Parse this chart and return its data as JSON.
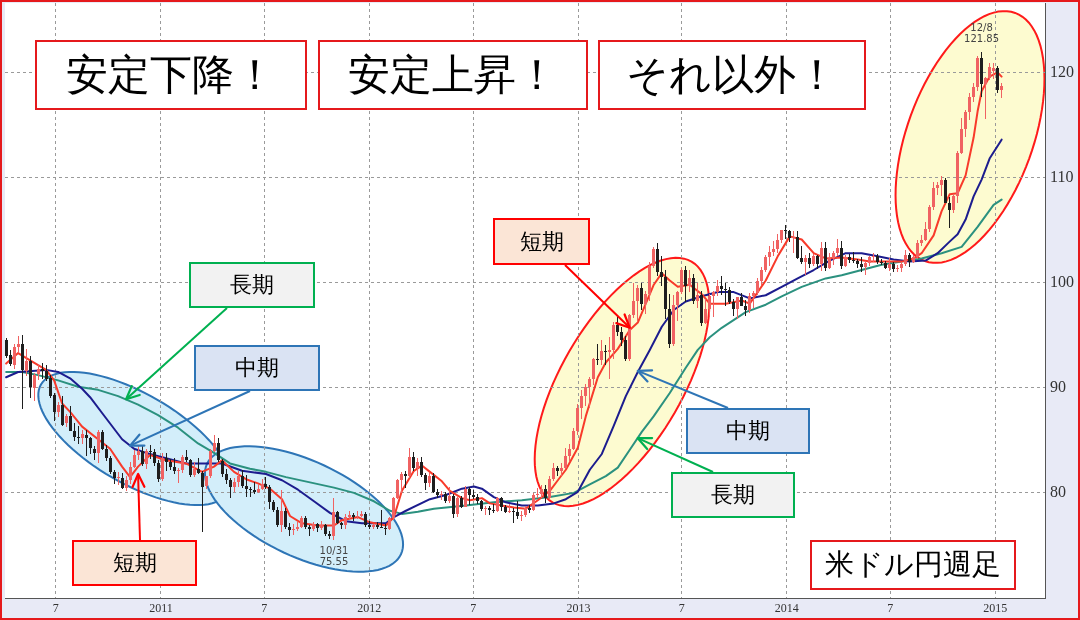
{
  "chart_data": {
    "type": "candlestick",
    "title": "米ドル円週足",
    "annotations": [
      "安定下降！",
      "安定上昇！",
      "それ以外！",
      {
        "text": "長期",
        "x": "2010-11-01",
        "y": 88.9
      },
      {
        "text": "中期",
        "x": "2010-11-08",
        "y": 84.5
      },
      {
        "text": "短期",
        "x": "2010-11-22",
        "y": 81.8
      },
      {
        "text": "短期",
        "x": "2013-04-01",
        "y": 95.7
      },
      {
        "text": "中期",
        "x": "2013-04-15",
        "y": 91.6
      },
      {
        "text": "長期",
        "x": "2013-04-15",
        "y": 85.2
      },
      {
        "text": "12/8\n121.85",
        "x": "2014-12-08",
        "y": 121.85
      },
      {
        "text": "10/31\n75.55",
        "x": "2011-10-31",
        "y": 75.55
      }
    ],
    "xlim": [
      "2010-04-03",
      "2015-03-29"
    ],
    "xticks": [
      {
        "value": "2010-07-01",
        "label": "7"
      },
      {
        "value": "2011-01-01",
        "label": "2011"
      },
      {
        "value": "2011-07-01",
        "label": "7"
      },
      {
        "value": "2012-01-01",
        "label": "2012"
      },
      {
        "value": "2012-07-01",
        "label": "7"
      },
      {
        "value": "2013-01-01",
        "label": "2013"
      },
      {
        "value": "2013-07-01",
        "label": "7"
      },
      {
        "value": "2014-01-01",
        "label": "2014"
      },
      {
        "value": "2014-07-01",
        "label": "7"
      },
      {
        "value": "2015-01-01",
        "label": "2015"
      }
    ],
    "ylim": [
      70,
      126.6
    ],
    "yticks": [
      80,
      90,
      100,
      110,
      120
    ],
    "grid": true,
    "x": [
      "2010-04-05",
      "2010-04-12",
      "2010-04-19",
      "2010-04-26",
      "2010-05-03",
      "2010-05-10",
      "2010-05-17",
      "2010-05-24",
      "2010-05-31",
      "2010-06-07",
      "2010-06-14",
      "2010-06-21",
      "2010-06-28",
      "2010-07-05",
      "2010-07-12",
      "2010-07-19",
      "2010-07-26",
      "2010-08-02",
      "2010-08-09",
      "2010-08-16",
      "2010-08-23",
      "2010-08-30",
      "2010-09-06",
      "2010-09-13",
      "2010-09-20",
      "2010-09-27",
      "2010-10-04",
      "2010-10-11",
      "2010-10-18",
      "2010-10-25",
      "2010-11-01",
      "2010-11-08",
      "2010-11-15",
      "2010-11-22",
      "2010-11-29",
      "2010-12-06",
      "2010-12-13",
      "2010-12-20",
      "2010-12-27",
      "2011-01-03",
      "2011-01-10",
      "2011-01-17",
      "2011-01-24",
      "2011-01-31",
      "2011-02-07",
      "2011-02-14",
      "2011-02-21",
      "2011-02-28",
      "2011-03-07",
      "2011-03-14",
      "2011-03-21",
      "2011-03-28",
      "2011-04-04",
      "2011-04-11",
      "2011-04-18",
      "2011-04-25",
      "2011-05-02",
      "2011-05-09",
      "2011-05-16",
      "2011-05-23",
      "2011-05-30",
      "2011-06-06",
      "2011-06-13",
      "2011-06-20",
      "2011-06-27",
      "2011-07-04",
      "2011-07-11",
      "2011-07-18",
      "2011-07-25",
      "2011-08-01",
      "2011-08-08",
      "2011-08-15",
      "2011-08-22",
      "2011-08-29",
      "2011-09-05",
      "2011-09-12",
      "2011-09-19",
      "2011-09-26",
      "2011-10-03",
      "2011-10-10",
      "2011-10-17",
      "2011-10-24",
      "2011-10-31",
      "2011-11-07",
      "2011-11-14",
      "2011-11-21",
      "2011-11-28",
      "2011-12-05",
      "2011-12-12",
      "2011-12-19",
      "2011-12-26",
      "2012-01-02",
      "2012-01-09",
      "2012-01-16",
      "2012-01-23",
      "2012-01-30",
      "2012-02-06",
      "2012-02-13",
      "2012-02-20",
      "2012-02-27",
      "2012-03-05",
      "2012-03-12",
      "2012-03-19",
      "2012-03-26",
      "2012-04-02",
      "2012-04-09",
      "2012-04-16",
      "2012-04-23",
      "2012-04-30",
      "2012-05-07",
      "2012-05-14",
      "2012-05-21",
      "2012-05-28",
      "2012-06-04",
      "2012-06-11",
      "2012-06-18",
      "2012-06-25",
      "2012-07-02",
      "2012-07-09",
      "2012-07-16",
      "2012-07-23",
      "2012-07-30",
      "2012-08-06",
      "2012-08-13",
      "2012-08-20",
      "2012-08-27",
      "2012-09-03",
      "2012-09-10",
      "2012-09-17",
      "2012-09-24",
      "2012-10-01",
      "2012-10-08",
      "2012-10-15",
      "2012-10-22",
      "2012-10-29",
      "2012-11-05",
      "2012-11-12",
      "2012-11-19",
      "2012-11-26",
      "2012-12-03",
      "2012-12-10",
      "2012-12-17",
      "2012-12-24",
      "2012-12-31",
      "2013-01-07",
      "2013-01-14",
      "2013-01-21",
      "2013-01-28",
      "2013-02-04",
      "2013-02-11",
      "2013-02-18",
      "2013-02-25",
      "2013-03-04",
      "2013-03-11",
      "2013-03-18",
      "2013-03-25",
      "2013-04-01",
      "2013-04-08",
      "2013-04-15",
      "2013-04-22",
      "2013-04-29",
      "2013-05-06",
      "2013-05-13",
      "2013-05-20",
      "2013-05-27",
      "2013-06-03",
      "2013-06-10",
      "2013-06-17",
      "2013-06-24",
      "2013-07-01",
      "2013-07-08",
      "2013-07-15",
      "2013-07-22",
      "2013-07-29",
      "2013-08-05",
      "2013-08-12",
      "2013-08-19",
      "2013-08-26",
      "2013-09-02",
      "2013-09-09",
      "2013-09-16",
      "2013-09-23",
      "2013-09-30",
      "2013-10-07",
      "2013-10-14",
      "2013-10-21",
      "2013-10-28",
      "2013-11-04",
      "2013-11-11",
      "2013-11-18",
      "2013-11-25",
      "2013-12-02",
      "2013-12-09",
      "2013-12-16",
      "2013-12-23",
      "2013-12-30",
      "2014-01-06",
      "2014-01-13",
      "2014-01-20",
      "2014-01-27",
      "2014-02-03",
      "2014-02-10",
      "2014-02-17",
      "2014-02-24",
      "2014-03-03",
      "2014-03-10",
      "2014-03-17",
      "2014-03-24",
      "2014-03-31",
      "2014-04-07",
      "2014-04-14",
      "2014-04-21",
      "2014-04-28",
      "2014-05-05",
      "2014-05-12",
      "2014-05-19",
      "2014-05-26",
      "2014-06-02",
      "2014-06-09",
      "2014-06-16",
      "2014-06-23",
      "2014-06-30",
      "2014-07-07",
      "2014-07-14",
      "2014-07-21",
      "2014-07-28",
      "2014-08-04",
      "2014-08-11",
      "2014-08-18",
      "2014-08-25",
      "2014-09-01",
      "2014-09-08",
      "2014-09-15",
      "2014-09-22",
      "2014-09-29",
      "2014-10-06",
      "2014-10-13",
      "2014-10-20",
      "2014-10-27",
      "2014-11-03",
      "2014-11-10",
      "2014-11-17",
      "2014-11-24",
      "2014-12-01",
      "2014-12-08",
      "2014-12-15",
      "2014-12-22",
      "2014-12-29",
      "2015-01-05",
      "2015-01-12"
    ],
    "ohlc": [
      [
        94.5,
        94.7,
        92.9,
        93.0
      ],
      [
        93.1,
        93.5,
        92.1,
        92.3
      ],
      [
        92.2,
        94.1,
        91.8,
        93.9
      ],
      [
        93.9,
        94.9,
        93.4,
        94.2
      ],
      [
        94.2,
        95.0,
        88.0,
        91.7
      ],
      [
        91.6,
        93.6,
        91.2,
        92.5
      ],
      [
        92.5,
        93.0,
        89.1,
        90.1
      ],
      [
        90.0,
        91.4,
        88.8,
        91.2
      ],
      [
        91.3,
        92.2,
        90.8,
        91.8
      ],
      [
        91.8,
        92.3,
        90.9,
        91.6
      ],
      [
        91.6,
        92.1,
        90.7,
        90.8
      ],
      [
        90.9,
        91.2,
        89.1,
        89.2
      ],
      [
        89.3,
        89.5,
        86.9,
        87.7
      ],
      [
        87.7,
        88.6,
        87.3,
        88.4
      ],
      [
        88.4,
        89.2,
        86.4,
        86.5
      ],
      [
        86.6,
        87.5,
        86.3,
        87.3
      ],
      [
        87.3,
        88.2,
        85.9,
        85.9
      ],
      [
        85.9,
        86.6,
        85.0,
        85.3
      ],
      [
        85.3,
        86.3,
        84.7,
        85.2
      ],
      [
        85.2,
        85.9,
        84.7,
        85.6
      ],
      [
        85.5,
        85.9,
        83.6,
        85.2
      ],
      [
        85.2,
        85.3,
        83.7,
        84.3
      ],
      [
        84.2,
        84.4,
        83.2,
        83.8
      ],
      [
        83.8,
        85.9,
        82.9,
        85.8
      ],
      [
        85.8,
        85.9,
        84.1,
        84.2
      ],
      [
        84.2,
        84.5,
        83.1,
        83.3
      ],
      [
        83.3,
        83.5,
        81.8,
        82.0
      ],
      [
        82.0,
        82.1,
        80.9,
        81.4
      ],
      [
        81.4,
        81.9,
        80.8,
        81.5
      ],
      [
        81.4,
        81.8,
        80.4,
        80.5
      ],
      [
        80.5,
        81.6,
        80.2,
        81.2
      ],
      [
        81.2,
        82.9,
        80.9,
        82.5
      ],
      [
        82.5,
        84.0,
        82.4,
        83.6
      ],
      [
        83.6,
        84.4,
        83.2,
        84.0
      ],
      [
        84.0,
        84.4,
        82.6,
        82.7
      ],
      [
        82.7,
        84.1,
        82.3,
        84.0
      ],
      [
        84.0,
        84.5,
        83.3,
        83.9
      ],
      [
        83.9,
        84.1,
        82.6,
        82.8
      ],
      [
        82.8,
        83.1,
        81.1,
        81.3
      ],
      [
        81.3,
        83.7,
        81.2,
        83.3
      ],
      [
        83.3,
        83.7,
        82.1,
        82.9
      ],
      [
        82.9,
        83.2,
        82.2,
        82.5
      ],
      [
        82.5,
        83.3,
        81.8,
        82.1
      ],
      [
        82.1,
        82.3,
        81.0,
        82.2
      ],
      [
        82.2,
        83.6,
        81.9,
        83.4
      ],
      [
        83.4,
        84.0,
        83.0,
        83.1
      ],
      [
        83.1,
        83.2,
        81.6,
        81.7
      ],
      [
        81.7,
        82.9,
        81.6,
        82.3
      ],
      [
        82.3,
        83.3,
        81.8,
        81.9
      ],
      [
        81.9,
        82.0,
        76.3,
        80.6
      ],
      [
        80.7,
        81.6,
        80.4,
        81.6
      ],
      [
        81.6,
        84.1,
        81.5,
        84.0
      ],
      [
        84.0,
        85.5,
        83.9,
        84.7
      ],
      [
        84.7,
        85.2,
        83.0,
        83.1
      ],
      [
        83.0,
        83.2,
        81.6,
        81.8
      ],
      [
        81.8,
        82.2,
        80.9,
        81.2
      ],
      [
        81.2,
        81.4,
        79.6,
        80.6
      ],
      [
        80.6,
        81.4,
        80.1,
        81.0
      ],
      [
        81.0,
        82.0,
        80.6,
        81.6
      ],
      [
        81.6,
        82.1,
        80.5,
        80.7
      ],
      [
        80.7,
        81.7,
        79.7,
        80.4
      ],
      [
        80.4,
        80.5,
        79.7,
        80.3
      ],
      [
        80.3,
        81.0,
        79.9,
        80.1
      ],
      [
        80.1,
        80.8,
        80.0,
        80.4
      ],
      [
        80.4,
        81.3,
        80.3,
        80.8
      ],
      [
        80.8,
        81.5,
        80.4,
        80.6
      ],
      [
        80.6,
        80.7,
        78.5,
        79.1
      ],
      [
        79.1,
        79.3,
        78.2,
        78.4
      ],
      [
        78.4,
        78.6,
        76.8,
        76.9
      ],
      [
        76.9,
        80.2,
        76.3,
        78.3
      ],
      [
        78.3,
        78.5,
        76.6,
        76.8
      ],
      [
        76.8,
        77.1,
        75.9,
        76.5
      ],
      [
        76.5,
        77.0,
        76.0,
        76.6
      ],
      [
        76.6,
        77.2,
        76.4,
        76.8
      ],
      [
        76.8,
        77.8,
        76.7,
        77.6
      ],
      [
        77.6,
        77.8,
        76.6,
        76.8
      ],
      [
        76.8,
        76.9,
        75.9,
        76.6
      ],
      [
        76.6,
        77.2,
        76.4,
        77.0
      ],
      [
        77.0,
        77.1,
        76.3,
        76.7
      ],
      [
        76.7,
        77.3,
        76.5,
        76.9
      ],
      [
        76.9,
        77.0,
        75.9,
        76.1
      ],
      [
        76.1,
        76.3,
        75.7,
        75.9
      ],
      [
        75.9,
        79.5,
        75.55,
        78.2
      ],
      [
        78.2,
        78.2,
        77.1,
        77.1
      ],
      [
        77.1,
        77.2,
        76.6,
        76.9
      ],
      [
        76.9,
        77.9,
        76.6,
        77.7
      ],
      [
        77.7,
        78.2,
        77.5,
        77.9
      ],
      [
        77.9,
        78.0,
        77.4,
        77.7
      ],
      [
        77.7,
        78.2,
        77.6,
        77.8
      ],
      [
        77.8,
        78.2,
        77.8,
        78.0
      ],
      [
        78.0,
        78.1,
        76.8,
        76.9
      ],
      [
        76.9,
        77.3,
        76.6,
        76.8
      ],
      [
        76.8,
        77.0,
        76.6,
        76.9
      ],
      [
        76.9,
        77.2,
        76.6,
        76.8
      ],
      [
        76.8,
        78.3,
        76.7,
        76.7
      ],
      [
        76.7,
        77.0,
        76.0,
        76.6
      ],
      [
        76.6,
        77.7,
        76.5,
        77.6
      ],
      [
        77.6,
        79.6,
        77.5,
        79.5
      ],
      [
        79.5,
        81.3,
        79.5,
        81.2
      ],
      [
        81.2,
        81.9,
        80.0,
        81.8
      ],
      [
        81.8,
        82.0,
        80.5,
        81.6
      ],
      [
        81.6,
        84.2,
        81.5,
        83.4
      ],
      [
        83.4,
        83.8,
        82.1,
        82.4
      ],
      [
        82.4,
        83.3,
        81.7,
        82.9
      ],
      [
        82.9,
        83.4,
        81.6,
        81.7
      ],
      [
        81.7,
        81.8,
        80.3,
        80.9
      ],
      [
        80.9,
        81.8,
        80.6,
        81.6
      ],
      [
        81.6,
        81.8,
        80.0,
        80.1
      ],
      [
        80.1,
        80.3,
        79.6,
        79.8
      ],
      [
        79.8,
        80.1,
        79.4,
        79.9
      ],
      [
        79.9,
        80.0,
        79.1,
        79.2
      ],
      [
        79.2,
        80.5,
        79.1,
        79.7
      ],
      [
        79.7,
        79.8,
        77.7,
        78.0
      ],
      [
        78.0,
        79.6,
        77.8,
        79.5
      ],
      [
        79.5,
        79.7,
        78.6,
        78.7
      ],
      [
        78.7,
        80.6,
        78.7,
        80.4
      ],
      [
        80.4,
        80.5,
        78.9,
        79.8
      ],
      [
        79.8,
        80.2,
        79.5,
        79.6
      ],
      [
        79.6,
        79.8,
        79.0,
        79.2
      ],
      [
        79.2,
        79.3,
        78.3,
        78.5
      ],
      [
        78.5,
        78.7,
        77.9,
        78.6
      ],
      [
        78.6,
        78.7,
        77.9,
        78.4
      ],
      [
        78.4,
        78.9,
        78.1,
        78.3
      ],
      [
        78.3,
        79.6,
        78.2,
        79.5
      ],
      [
        79.5,
        79.6,
        78.3,
        78.7
      ],
      [
        78.7,
        78.8,
        78.1,
        78.2
      ],
      [
        78.2,
        78.9,
        78.1,
        78.3
      ],
      [
        78.3,
        78.5,
        77.2,
        78.2
      ],
      [
        78.2,
        79.2,
        77.6,
        77.8
      ],
      [
        77.8,
        78.2,
        77.4,
        77.9
      ],
      [
        77.9,
        78.7,
        77.8,
        78.6
      ],
      [
        78.6,
        78.8,
        78.1,
        78.4
      ],
      [
        78.4,
        79.9,
        78.3,
        79.8
      ],
      [
        79.8,
        80.4,
        79.6,
        79.9
      ],
      [
        79.9,
        80.7,
        79.6,
        80.4
      ],
      [
        80.4,
        80.7,
        79.1,
        79.5
      ],
      [
        79.5,
        81.6,
        79.4,
        81.3
      ],
      [
        81.3,
        82.8,
        81.2,
        82.4
      ],
      [
        82.4,
        82.5,
        81.7,
        82.1
      ],
      [
        82.1,
        82.8,
        81.7,
        82.4
      ],
      [
        82.4,
        84.2,
        82.3,
        83.5
      ],
      [
        83.5,
        84.6,
        83.1,
        84.2
      ],
      [
        84.2,
        86.1,
        84.1,
        85.9
      ],
      [
        85.9,
        88.4,
        85.6,
        88.1
      ],
      [
        88.1,
        89.7,
        87.1,
        89.2
      ],
      [
        89.2,
        90.3,
        88.3,
        90.1
      ],
      [
        90.1,
        91.0,
        88.1,
        90.8
      ],
      [
        90.8,
        92.8,
        90.3,
        92.7
      ],
      [
        92.7,
        94.1,
        92.2,
        92.6
      ],
      [
        92.6,
        94.5,
        92.2,
        93.5
      ],
      [
        93.5,
        94.0,
        92.2,
        93.4
      ],
      [
        93.4,
        94.8,
        90.9,
        93.6
      ],
      [
        93.6,
        96.2,
        92.8,
        96.0
      ],
      [
        96.0,
        96.7,
        95.0,
        95.3
      ],
      [
        95.3,
        95.7,
        94.0,
        94.5
      ],
      [
        94.5,
        94.9,
        92.6,
        92.7
      ],
      [
        92.7,
        97.0,
        92.6,
        96.9
      ],
      [
        96.9,
        99.9,
        96.7,
        98.3
      ],
      [
        98.3,
        99.7,
        96.4,
        99.5
      ],
      [
        99.5,
        99.9,
        97.4,
        98.0
      ],
      [
        98.0,
        99.2,
        97.1,
        98.9
      ],
      [
        98.9,
        101.9,
        98.3,
        101.6
      ],
      [
        101.6,
        103.3,
        101.4,
        103.2
      ],
      [
        103.2,
        103.7,
        100.7,
        101.0
      ],
      [
        101.0,
        102.5,
        99.7,
        100.5
      ],
      [
        100.5,
        101.2,
        96.6,
        97.5
      ],
      [
        97.5,
        98.9,
        93.8,
        94.2
      ],
      [
        94.2,
        98.8,
        94.0,
        97.9
      ],
      [
        97.9,
        99.2,
        96.4,
        99.1
      ],
      [
        99.1,
        101.3,
        99.0,
        101.2
      ],
      [
        101.2,
        101.5,
        98.2,
        99.7
      ],
      [
        99.7,
        101.2,
        99.2,
        100.4
      ],
      [
        100.4,
        100.8,
        98.0,
        98.3
      ],
      [
        98.3,
        99.9,
        97.6,
        98.8
      ],
      [
        98.8,
        99.2,
        95.9,
        96.2
      ],
      [
        96.2,
        98.4,
        96.1,
        97.5
      ],
      [
        97.5,
        98.9,
        96.8,
        98.7
      ],
      [
        98.7,
        99.2,
        96.8,
        99.1
      ],
      [
        99.1,
        100.2,
        98.8,
        99.7
      ],
      [
        99.7,
        100.6,
        98.9,
        99.4
      ],
      [
        99.4,
        99.9,
        97.8,
        99.3
      ],
      [
        99.3,
        99.5,
        98.0,
        98.2
      ],
      [
        98.2,
        98.4,
        96.9,
        97.5
      ],
      [
        97.5,
        98.6,
        96.6,
        98.6
      ],
      [
        98.6,
        99.0,
        97.8,
        97.8
      ],
      [
        97.8,
        98.3,
        96.9,
        97.4
      ],
      [
        97.4,
        99.0,
        97.2,
        98.7
      ],
      [
        98.7,
        99.2,
        97.6,
        99.0
      ],
      [
        99.0,
        100.4,
        98.9,
        100.2
      ],
      [
        100.2,
        101.4,
        99.8,
        101.2
      ],
      [
        101.2,
        102.6,
        101.1,
        102.4
      ],
      [
        102.4,
        103.4,
        101.6,
        102.9
      ],
      [
        102.9,
        103.9,
        102.6,
        103.2
      ],
      [
        103.2,
        104.6,
        102.9,
        104.1
      ],
      [
        104.1,
        105.0,
        103.8,
        105.0
      ],
      [
        105.0,
        105.4,
        104.2,
        104.9
      ],
      [
        104.9,
        105.0,
        103.9,
        104.2
      ],
      [
        104.2,
        104.9,
        102.9,
        104.3
      ],
      [
        104.3,
        104.9,
        102.3,
        102.3
      ],
      [
        102.3,
        103.4,
        101.8,
        102.0
      ],
      [
        102.0,
        102.6,
        100.8,
        102.3
      ],
      [
        102.3,
        102.8,
        101.4,
        101.8
      ],
      [
        101.8,
        102.7,
        101.6,
        102.5
      ],
      [
        102.5,
        102.6,
        101.3,
        101.8
      ],
      [
        101.8,
        103.8,
        101.2,
        103.3
      ],
      [
        103.3,
        103.8,
        101.2,
        101.4
      ],
      [
        101.4,
        102.8,
        101.3,
        102.3
      ],
      [
        102.3,
        103.0,
        101.7,
        102.8
      ],
      [
        102.8,
        104.1,
        102.6,
        103.3
      ],
      [
        103.3,
        103.9,
        101.3,
        101.6
      ],
      [
        101.6,
        102.6,
        101.5,
        102.4
      ],
      [
        102.4,
        102.7,
        101.9,
        102.2
      ],
      [
        102.2,
        102.9,
        101.9,
        102.1
      ],
      [
        102.1,
        102.2,
        101.4,
        101.8
      ],
      [
        101.8,
        102.4,
        101.1,
        101.5
      ],
      [
        101.5,
        102.0,
        100.8,
        101.9
      ],
      [
        101.9,
        102.5,
        101.6,
        102.4
      ],
      [
        102.4,
        102.8,
        102.0,
        102.5
      ],
      [
        102.5,
        102.7,
        101.8,
        102.0
      ],
      [
        102.0,
        102.2,
        101.7,
        101.9
      ],
      [
        101.9,
        102.0,
        101.3,
        101.4
      ],
      [
        101.4,
        102.3,
        101.2,
        101.8
      ],
      [
        101.8,
        101.9,
        101.1,
        101.3
      ],
      [
        101.3,
        101.6,
        101.1,
        101.4
      ],
      [
        101.4,
        101.9,
        101.1,
        101.8
      ],
      [
        101.8,
        103.1,
        101.6,
        102.6
      ],
      [
        102.6,
        102.8,
        101.5,
        102.0
      ],
      [
        102.0,
        102.6,
        101.9,
        102.4
      ],
      [
        102.4,
        104.0,
        102.3,
        103.8
      ],
      [
        103.8,
        104.5,
        103.5,
        104.1
      ],
      [
        104.1,
        105.7,
        104.0,
        105.1
      ],
      [
        105.1,
        107.3,
        104.9,
        107.2
      ],
      [
        107.2,
        109.5,
        107.0,
        109.0
      ],
      [
        109.0,
        109.5,
        108.4,
        109.3
      ],
      [
        109.3,
        110.1,
        108.3,
        109.8
      ],
      [
        109.8,
        109.9,
        107.6,
        107.6
      ],
      [
        107.6,
        108.1,
        105.2,
        106.9
      ],
      [
        106.9,
        108.4,
        106.7,
        108.2
      ],
      [
        108.2,
        112.5,
        107.6,
        112.3
      ],
      [
        112.3,
        115.6,
        112.3,
        114.6
      ],
      [
        114.6,
        116.4,
        113.9,
        116.2
      ],
      [
        116.2,
        118.0,
        115.5,
        117.7
      ],
      [
        117.7,
        118.9,
        117.2,
        118.6
      ],
      [
        118.6,
        121.5,
        118.3,
        121.4
      ],
      [
        121.4,
        121.85,
        117.7,
        118.9
      ],
      [
        118.9,
        119.5,
        115.6,
        119.5
      ],
      [
        119.5,
        120.8,
        119.3,
        120.5
      ],
      [
        120.1,
        120.8,
        119.4,
        120.4
      ],
      [
        120.4,
        120.6,
        118.1,
        118.3
      ],
      [
        118.3,
        118.9,
        117.6,
        118.7
      ]
    ],
    "colors": [
      "#1e1e1e",
      "#1e1e1e",
      "#f06262",
      "#f06262",
      "#1e1e1e",
      "#f06262",
      "#1e1e1e",
      "#f06262",
      "#f06262",
      "#1e1e1e",
      "#1e1e1e",
      "#1e1e1e",
      "#1e1e1e",
      "#f06262",
      "#1e1e1e",
      "#f06262",
      "#1e1e1e",
      "#1e1e1e",
      "#1e1e1e",
      "#f06262",
      "#1e1e1e",
      "#1e1e1e",
      "#1e1e1e",
      "#f06262",
      "#1e1e1e",
      "#1e1e1e",
      "#1e1e1e",
      "#1e1e1e",
      "#f06262",
      "#1e1e1e",
      "#f06262",
      "#f06262",
      "#f06262",
      "#f06262",
      "#1e1e1e",
      "#f06262",
      "#1e1e1e",
      "#1e1e1e",
      "#1e1e1e",
      "#f06262",
      "#1e1e1e",
      "#1e1e1e",
      "#1e1e1e",
      "#f06262",
      "#f06262",
      "#1e1e1e",
      "#1e1e1e",
      "#f06262",
      "#1e1e1e",
      "#1e1e1e",
      "#f06262",
      "#f06262",
      "#f06262",
      "#1e1e1e",
      "#1e1e1e",
      "#1e1e1e",
      "#1e1e1e",
      "#f06262",
      "#f06262",
      "#1e1e1e",
      "#1e1e1e",
      "#1e1e1e",
      "#1e1e1e",
      "#f06262",
      "#f06262",
      "#1e1e1e",
      "#1e1e1e",
      "#1e1e1e",
      "#1e1e1e",
      "#f06262",
      "#1e1e1e",
      "#1e1e1e",
      "#f06262",
      "#f06262",
      "#f06262",
      "#1e1e1e",
      "#1e1e1e",
      "#f06262",
      "#1e1e1e",
      "#f06262",
      "#1e1e1e",
      "#1e1e1e",
      "#f06262",
      "#1e1e1e",
      "#1e1e1e",
      "#f06262",
      "#f06262",
      "#1e1e1e",
      "#f06262",
      "#f06262",
      "#1e1e1e",
      "#1e1e1e",
      "#f06262",
      "#1e1e1e",
      "#1e1e1e",
      "#1e1e1e",
      "#f06262",
      "#f06262",
      "#f06262",
      "#f06262",
      "#1e1e1e",
      "#f06262",
      "#1e1e1e",
      "#f06262",
      "#1e1e1e",
      "#1e1e1e",
      "#f06262",
      "#1e1e1e",
      "#1e1e1e",
      "#f06262",
      "#1e1e1e",
      "#f06262",
      "#1e1e1e",
      "#f06262",
      "#1e1e1e",
      "#f06262",
      "#1e1e1e",
      "#1e1e1e",
      "#1e1e1e",
      "#1e1e1e",
      "#f06262",
      "#1e1e1e",
      "#1e1e1e",
      "#f06262",
      "#1e1e1e",
      "#1e1e1e",
      "#f06262",
      "#1e1e1e",
      "#1e1e1e",
      "#f06262",
      "#f06262",
      "#1e1e1e",
      "#f06262",
      "#f06262",
      "#f06262",
      "#1e1e1e",
      "#f06262",
      "#f06262",
      "#1e1e1e",
      "#f06262",
      "#f06262",
      "#f06262",
      "#f06262",
      "#f06262",
      "#f06262",
      "#f06262",
      "#f06262",
      "#f06262",
      "#1e1e1e",
      "#f06262",
      "#1e1e1e",
      "#f06262",
      "#f06262",
      "#1e1e1e",
      "#1e1e1e",
      "#1e1e1e",
      "#f06262",
      "#f06262",
      "#f06262",
      "#1e1e1e",
      "#f06262",
      "#f06262",
      "#f06262",
      "#1e1e1e",
      "#1e1e1e",
      "#1e1e1e",
      "#1e1e1e",
      "#f06262",
      "#f06262",
      "#f06262",
      "#1e1e1e",
      "#f06262",
      "#1e1e1e",
      "#f06262",
      "#1e1e1e",
      "#f06262",
      "#f06262",
      "#f06262",
      "#f06262",
      "#1e1e1e",
      "#1e1e1e",
      "#1e1e1e",
      "#1e1e1e",
      "#f06262",
      "#1e1e1e",
      "#1e1e1e",
      "#f06262",
      "#f06262",
      "#f06262",
      "#f06262",
      "#f06262",
      "#f06262",
      "#f06262",
      "#f06262",
      "#f06262",
      "#1e1e1e",
      "#1e1e1e",
      "#f06262",
      "#1e1e1e",
      "#1e1e1e",
      "#f06262",
      "#1e1e1e",
      "#f06262",
      "#1e1e1e",
      "#f06262",
      "#1e1e1e",
      "#f06262",
      "#f06262",
      "#f06262",
      "#1e1e1e",
      "#f06262",
      "#1e1e1e",
      "#1e1e1e",
      "#1e1e1e",
      "#1e1e1e",
      "#f06262",
      "#f06262",
      "#f06262",
      "#1e1e1e",
      "#1e1e1e",
      "#1e1e1e",
      "#f06262",
      "#1e1e1e",
      "#f06262",
      "#f06262",
      "#f06262",
      "#1e1e1e",
      "#f06262",
      "#f06262",
      "#f06262",
      "#f06262",
      "#f06262",
      "#f06262",
      "#f06262",
      "#f06262",
      "#1e1e1e",
      "#1e1e1e",
      "#f06262",
      "#f06262",
      "#f06262",
      "#f06262",
      "#f06262",
      "#f06262",
      "#f06262",
      "#1e1e1e",
      "#f06262",
      "#f06262",
      "#f06262",
      "#1e1e1e",
      "#f06262"
    ],
    "series": [
      {
        "type": "line",
        "color": "#f83a2a",
        "x": [
          "2010-04-05",
          "2010-04-26",
          "2010-05-17",
          "2010-06-14",
          "2010-06-28",
          "2010-07-12",
          "2010-07-26",
          "2010-08-16",
          "2010-09-13",
          "2010-10-04",
          "2010-10-25",
          "2010-11-08",
          "2010-11-22",
          "2010-12-13",
          "2011-01-10",
          "2011-02-14",
          "2011-03-14",
          "2011-04-04",
          "2011-04-18",
          "2011-05-09",
          "2011-05-30",
          "2011-06-20",
          "2011-07-11",
          "2011-08-01",
          "2011-08-15",
          "2011-09-05",
          "2011-10-03",
          "2011-10-31",
          "2011-11-14",
          "2011-12-12",
          "2012-01-02",
          "2012-01-30",
          "2012-02-13",
          "2012-02-27",
          "2012-03-19",
          "2012-04-02",
          "2012-04-16",
          "2012-05-07",
          "2012-05-21",
          "2012-06-11",
          "2012-06-25",
          "2012-07-16",
          "2012-07-30",
          "2012-08-20",
          "2012-09-10",
          "2012-10-01",
          "2012-10-22",
          "2012-11-12",
          "2012-11-26",
          "2012-12-10",
          "2012-12-31",
          "2013-01-14",
          "2013-02-04",
          "2013-02-18",
          "2013-03-11",
          "2013-04-01",
          "2013-04-15",
          "2013-04-29",
          "2013-05-13",
          "2013-05-27",
          "2013-06-10",
          "2013-06-24",
          "2013-07-15",
          "2013-08-05",
          "2013-08-19",
          "2013-09-16",
          "2013-10-14",
          "2013-10-28",
          "2013-11-25",
          "2013-12-16",
          "2014-01-06",
          "2014-01-27",
          "2014-02-17",
          "2014-03-10",
          "2014-04-07",
          "2014-05-05",
          "2014-05-26",
          "2014-06-23",
          "2014-07-21",
          "2014-08-11",
          "2014-08-25",
          "2014-09-15",
          "2014-09-29",
          "2014-10-13",
          "2014-10-27",
          "2014-11-10",
          "2014-11-24",
          "2014-12-01",
          "2014-12-08",
          "2014-12-22",
          "2015-01-05",
          "2015-01-12"
        ],
        "values": [
          92.3,
          93.3,
          92.6,
          91.7,
          90.7,
          88.5,
          87.7,
          86.3,
          85.1,
          84.2,
          82.5,
          81.5,
          82.5,
          83.6,
          83.1,
          82.8,
          82.0,
          82.5,
          83.1,
          82.0,
          81.3,
          80.9,
          80.4,
          79.4,
          77.8,
          77.1,
          76.9,
          76.9,
          77.4,
          77.7,
          77.2,
          76.9,
          77.7,
          80.2,
          82.1,
          82.6,
          82.0,
          81.1,
          80.2,
          79.5,
          79.3,
          79.5,
          79.0,
          78.8,
          78.6,
          78.5,
          79.3,
          80.2,
          81.2,
          82.2,
          84.3,
          87.3,
          91.0,
          92.4,
          93.7,
          95.5,
          96.2,
          98.0,
          99.8,
          100.9,
          100.2,
          99.6,
          99.8,
          98.9,
          98.0,
          98.0,
          98.3,
          98.0,
          100.2,
          102.5,
          104.4,
          104.1,
          102.8,
          102.3,
          102.4,
          102.2,
          102.0,
          102.0,
          102.0,
          102.3,
          102.8,
          104.5,
          106.8,
          108.4,
          108.5,
          110.2,
          113.8,
          116.3,
          118.2,
          119.6,
          120.0,
          119.6
        ]
      },
      {
        "type": "line",
        "color": "#1c1c8e",
        "x": [
          "2010-04-05",
          "2010-04-26",
          "2010-06-14",
          "2010-07-05",
          "2010-07-26",
          "2010-08-16",
          "2010-08-30",
          "2010-09-20",
          "2010-10-11",
          "2010-10-25",
          "2010-11-15",
          "2010-12-06",
          "2011-01-10",
          "2011-02-14",
          "2011-03-21",
          "2011-04-18",
          "2011-05-23",
          "2011-07-04",
          "2011-08-01",
          "2011-08-29",
          "2011-09-26",
          "2011-10-24",
          "2011-11-21",
          "2011-12-19",
          "2012-01-30",
          "2012-02-13",
          "2012-03-05",
          "2012-04-16",
          "2012-05-14",
          "2012-06-11",
          "2012-07-02",
          "2012-07-16",
          "2012-08-06",
          "2012-08-27",
          "2012-09-24",
          "2012-10-22",
          "2012-11-19",
          "2012-12-10",
          "2012-12-31",
          "2013-01-21",
          "2013-02-11",
          "2013-03-04",
          "2013-03-25",
          "2013-04-15",
          "2013-05-06",
          "2013-05-27",
          "2013-06-17",
          "2013-07-08",
          "2013-08-05",
          "2013-09-02",
          "2013-09-30",
          "2013-10-28",
          "2013-11-25",
          "2013-12-23",
          "2014-01-20",
          "2014-02-17",
          "2014-03-17",
          "2014-04-14",
          "2014-05-12",
          "2014-06-09",
          "2014-07-07",
          "2014-08-04",
          "2014-09-01",
          "2014-09-22",
          "2014-10-13",
          "2014-10-27",
          "2014-11-10",
          "2014-11-24",
          "2014-12-08",
          "2014-12-22",
          "2015-01-12"
        ],
        "values": [
          91.0,
          91.5,
          91.7,
          91.5,
          90.9,
          89.9,
          89.1,
          87.6,
          86.1,
          85.1,
          84.2,
          83.8,
          83.3,
          82.8,
          82.8,
          82.8,
          82.1,
          81.8,
          81.2,
          80.3,
          79.2,
          78.1,
          77.3,
          77.1,
          77.1,
          77.7,
          78.3,
          79.4,
          79.8,
          80.4,
          80.6,
          80.4,
          79.6,
          79.1,
          78.8,
          78.8,
          79.0,
          79.4,
          80.1,
          82.2,
          83.7,
          86.4,
          89.2,
          91.5,
          93.6,
          95.8,
          97.4,
          98.2,
          98.7,
          99.1,
          99.1,
          98.5,
          98.8,
          99.6,
          100.4,
          101.2,
          102.1,
          102.8,
          102.8,
          102.5,
          102.2,
          102.0,
          102.1,
          102.8,
          103.9,
          104.6,
          106.0,
          108.2,
          109.8,
          111.8,
          113.6
        ]
      },
      {
        "type": "line",
        "color": "#2b917f",
        "x": [
          "2010-04-05",
          "2010-05-03",
          "2010-05-31",
          "2010-07-05",
          "2010-08-09",
          "2010-09-13",
          "2010-10-18",
          "2010-11-22",
          "2010-12-27",
          "2011-01-31",
          "2011-03-07",
          "2011-04-04",
          "2011-05-02",
          "2011-06-06",
          "2011-07-04",
          "2011-08-08",
          "2011-09-19",
          "2011-10-31",
          "2011-12-05",
          "2012-01-09",
          "2012-02-06",
          "2012-02-27",
          "2012-03-26",
          "2012-04-23",
          "2012-06-18",
          "2012-08-06",
          "2012-09-24",
          "2012-11-12",
          "2012-12-24",
          "2013-01-21",
          "2013-02-18",
          "2013-03-11",
          "2013-04-01",
          "2013-04-22",
          "2013-05-13",
          "2013-06-10",
          "2013-07-08",
          "2013-07-29",
          "2013-08-19",
          "2013-09-09",
          "2013-10-21",
          "2013-11-25",
          "2013-12-23",
          "2014-01-27",
          "2014-03-10",
          "2014-04-07",
          "2014-05-12",
          "2014-06-16",
          "2014-07-21",
          "2014-08-25",
          "2014-09-29",
          "2014-11-03",
          "2014-12-01",
          "2014-12-29",
          "2015-01-12"
        ],
        "values": [
          91.5,
          91.5,
          91.2,
          90.7,
          90.1,
          89.8,
          89.2,
          88.4,
          87.4,
          86.2,
          84.7,
          83.8,
          82.8,
          82.3,
          82.0,
          81.5,
          81.0,
          80.5,
          80.0,
          79.2,
          78.3,
          78.0,
          78.2,
          78.5,
          78.8,
          79.1,
          79.3,
          79.6,
          80.0,
          80.8,
          81.6,
          82.4,
          84.1,
          85.8,
          87.3,
          89.5,
          91.9,
          93.6,
          94.8,
          95.7,
          97.2,
          97.9,
          98.7,
          99.6,
          100.4,
          100.7,
          101.2,
          101.7,
          102.0,
          102.3,
          102.8,
          103.4,
          105.3,
          107.4,
          107.9
        ]
      }
    ]
  }
}
